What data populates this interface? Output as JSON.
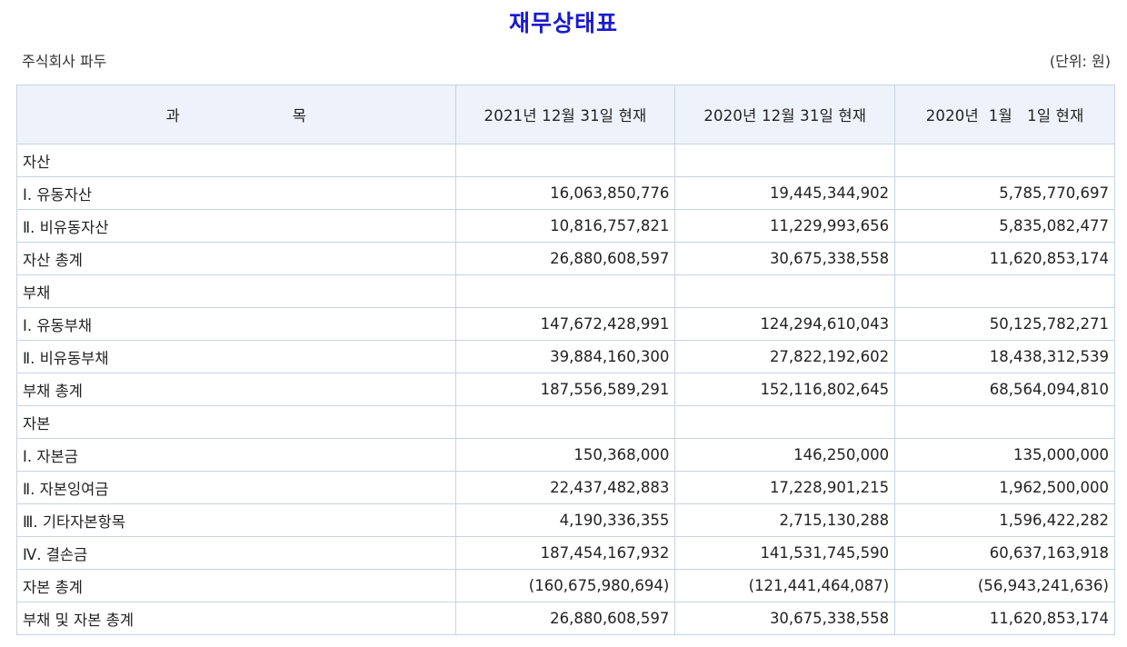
{
  "title": "재무상태표",
  "company": "주식회사 파두",
  "unit": "(단위: 원)",
  "header": {
    "subject_left": "과",
    "subject_right": "목",
    "col1": "2021년 12월 31일 현재",
    "col2": "2020년 12월 31일 현재",
    "col3": "2020년  1월   1일 현재"
  },
  "rows": [
    {
      "label": "자산",
      "v1": "",
      "v2": "",
      "v3": ""
    },
    {
      "label": "Ⅰ. 유동자산",
      "v1": "16,063,850,776",
      "v2": "19,445,344,902",
      "v3": "5,785,770,697"
    },
    {
      "label": "Ⅱ. 비유동자산",
      "v1": "10,816,757,821",
      "v2": "11,229,993,656",
      "v3": "5,835,082,477"
    },
    {
      "label": "자산 총계",
      "v1": "26,880,608,597",
      "v2": "30,675,338,558",
      "v3": "11,620,853,174"
    },
    {
      "label": "부채",
      "v1": "",
      "v2": "",
      "v3": ""
    },
    {
      "label": "Ⅰ. 유동부채",
      "v1": "147,672,428,991",
      "v2": "124,294,610,043",
      "v3": "50,125,782,271"
    },
    {
      "label": "Ⅱ. 비유동부채",
      "v1": "39,884,160,300",
      "v2": "27,822,192,602",
      "v3": "18,438,312,539"
    },
    {
      "label": "부채 총계",
      "v1": "187,556,589,291",
      "v2": "152,116,802,645",
      "v3": "68,564,094,810"
    },
    {
      "label": "자본",
      "v1": "",
      "v2": "",
      "v3": ""
    },
    {
      "label": "Ⅰ. 자본금",
      "v1": "150,368,000",
      "v2": "146,250,000",
      "v3": "135,000,000"
    },
    {
      "label": "Ⅱ. 자본잉여금",
      "v1": "22,437,482,883",
      "v2": "17,228,901,215",
      "v3": "1,962,500,000"
    },
    {
      "label": "Ⅲ. 기타자본항목",
      "v1": "4,190,336,355",
      "v2": "2,715,130,288",
      "v3": "1,596,422,282"
    },
    {
      "label": "Ⅳ. 결손금",
      "v1": "187,454,167,932",
      "v2": "141,531,745,590",
      "v3": "60,637,163,918"
    },
    {
      "label": "자본 총계",
      "v1": "(160,675,980,694)",
      "v2": "(121,441,464,087)",
      "v3": "(56,943,241,636)"
    },
    {
      "label": "부채 및 자본 총계",
      "v1": "26,880,608,597",
      "v2": "30,675,338,558",
      "v3": "11,620,853,174"
    }
  ]
}
